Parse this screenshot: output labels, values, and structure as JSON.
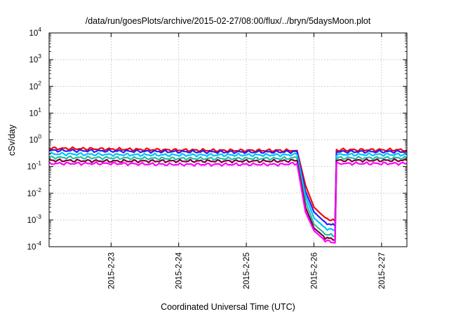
{
  "chart_data": {
    "type": "line",
    "title": "/data/run/goesPlots/archive/2015-02-27/08:00/flux/../bryn/5daysMoon.plot",
    "xlabel": "Coordinated Universal Time (UTC)",
    "ylabel": "cSv/day",
    "yscale": "log",
    "ylim": [
      0.0001,
      10000
    ],
    "xlim": [
      "2015-02-22 02:00",
      "2015-02-27 09:00"
    ],
    "grid": true,
    "x_ticks": [
      "2015-2-23",
      "2015-2-24",
      "2015-2-25",
      "2015-2-26",
      "2015-2-27"
    ],
    "y_ticks": [
      {
        "base": "10",
        "exp": "-4",
        "value": 0.0001
      },
      {
        "base": "10",
        "exp": "-3",
        "value": 0.001
      },
      {
        "base": "10",
        "exp": "-2",
        "value": 0.01
      },
      {
        "base": "10",
        "exp": "-1",
        "value": 0.1
      },
      {
        "base": "10",
        "exp": "0",
        "value": 1
      },
      {
        "base": "10",
        "exp": "1",
        "value": 10
      },
      {
        "base": "10",
        "exp": "2",
        "value": 100
      },
      {
        "base": "10",
        "exp": "3",
        "value": 1000
      },
      {
        "base": "10",
        "exp": "4",
        "value": 10000
      }
    ],
    "x": [
      "2015-02-22 02:00",
      "2015-02-23 00:00",
      "2015-02-23 20:00",
      "2015-02-24 16:00",
      "2015-02-25 12:00",
      "2015-02-25 18:00",
      "2015-02-25 21:00",
      "2015-02-26 00:00",
      "2015-02-26 04:00",
      "2015-02-26 07:30",
      "2015-02-26 08:00",
      "2015-02-26 12:00",
      "2015-02-27 00:00",
      "2015-02-27 09:00"
    ],
    "series": [
      {
        "color": "#ff0000",
        "values": [
          0.48,
          0.45,
          0.42,
          0.4,
          0.4,
          0.4,
          0.02,
          0.003,
          0.0012,
          0.0009,
          0.42,
          0.42,
          0.42,
          0.42
        ]
      },
      {
        "color": "#2020ff",
        "values": [
          0.4,
          0.38,
          0.36,
          0.35,
          0.35,
          0.36,
          0.012,
          0.002,
          0.0008,
          0.0006,
          0.36,
          0.36,
          0.36,
          0.36
        ]
      },
      {
        "color": "#00bfff",
        "values": [
          0.3,
          0.28,
          0.27,
          0.27,
          0.27,
          0.28,
          0.008,
          0.0012,
          0.0005,
          0.0004,
          0.28,
          0.28,
          0.28,
          0.28
        ]
      },
      {
        "color": "#20c0a0",
        "values": [
          0.22,
          0.21,
          0.2,
          0.2,
          0.2,
          0.21,
          0.005,
          0.0007,
          0.0003,
          0.00025,
          0.21,
          0.21,
          0.21,
          0.21
        ]
      },
      {
        "color": "#7a0030",
        "values": [
          0.17,
          0.16,
          0.16,
          0.16,
          0.16,
          0.17,
          0.003,
          0.0005,
          0.00022,
          0.00018,
          0.17,
          0.17,
          0.17,
          0.17
        ]
      },
      {
        "color": "#ff00ff",
        "values": [
          0.13,
          0.13,
          0.12,
          0.12,
          0.12,
          0.13,
          0.002,
          0.0004,
          0.00017,
          0.00014,
          0.13,
          0.13,
          0.13,
          0.13
        ]
      }
    ]
  }
}
